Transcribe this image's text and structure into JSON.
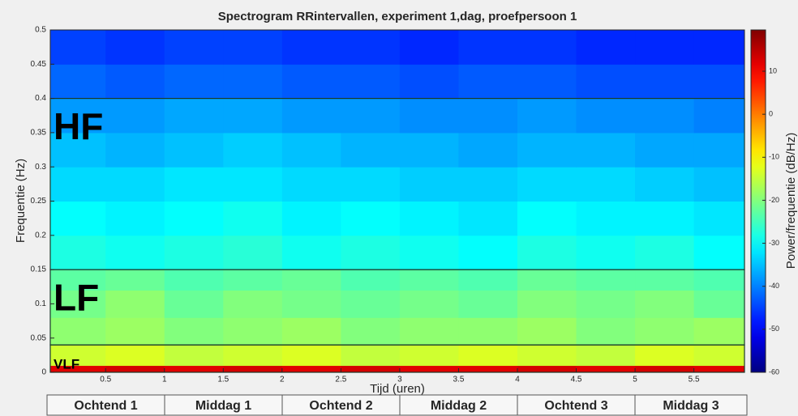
{
  "chart_data": {
    "type": "heatmap",
    "title": "Spectrogram RRintervallen, experiment 1,dag, proefpersoon 1",
    "xlabel": "Tijd (uren)",
    "ylabel": "Frequentie (Hz)",
    "colorbar_label": "Power/frequentie (dB/Hz)",
    "colormap": "jet",
    "xlim": [
      0.03,
      5.93
    ],
    "ylim": [
      0,
      0.5
    ],
    "clim": [
      -60,
      19.6
    ],
    "xticks": [
      0.5,
      1,
      1.5,
      2,
      2.5,
      3,
      3.5,
      4,
      4.5,
      5,
      5.5
    ],
    "yticks": [
      0,
      0.05,
      0.1,
      0.15,
      0.2,
      0.25,
      0.3,
      0.35,
      0.4,
      0.45,
      0.5
    ],
    "cticks": [
      -60,
      -50,
      -40,
      -30,
      -20,
      -10,
      0,
      10
    ],
    "x_edges": [
      0.03,
      0.5,
      1,
      1.5,
      2,
      2.5,
      3,
      3.5,
      4,
      4.5,
      5,
      5.5,
      5.93
    ],
    "y_edges": [
      0,
      0.01,
      0.04,
      0.08,
      0.12,
      0.15,
      0.2,
      0.25,
      0.3,
      0.35,
      0.4,
      0.45,
      0.5
    ],
    "z": [
      [
        12,
        13,
        12,
        13,
        12,
        13,
        12,
        12,
        13,
        12,
        13,
        12
      ],
      [
        -14,
        -13,
        -15,
        -14,
        -13,
        -15,
        -14,
        -13,
        -14,
        -15,
        -13,
        -14
      ],
      [
        -19,
        -18,
        -20,
        -19,
        -18,
        -20,
        -19,
        -19,
        -18,
        -20,
        -19,
        -18
      ],
      [
        -21,
        -19,
        -22,
        -20,
        -21,
        -22,
        -21,
        -22,
        -20,
        -21,
        -20,
        -22
      ],
      [
        -23,
        -22,
        -24,
        -23,
        -22,
        -24,
        -23,
        -24,
        -22,
        -23,
        -23,
        -24
      ],
      [
        -28,
        -29,
        -28,
        -27,
        -29,
        -28,
        -29,
        -30,
        -28,
        -29,
        -28,
        -30
      ],
      [
        -30,
        -31,
        -30,
        -29,
        -31,
        -30,
        -31,
        -32,
        -30,
        -31,
        -31,
        -32
      ],
      [
        -33,
        -33,
        -32,
        -32,
        -33,
        -33,
        -34,
        -34,
        -33,
        -33,
        -34,
        -35
      ],
      [
        -35,
        -36,
        -35,
        -34,
        -35,
        -36,
        -36,
        -37,
        -36,
        -36,
        -37,
        -37
      ],
      [
        -38,
        -38,
        -37,
        -37,
        -38,
        -38,
        -39,
        -39,
        -38,
        -39,
        -39,
        -40
      ],
      [
        -42,
        -43,
        -42,
        -42,
        -43,
        -43,
        -44,
        -43,
        -43,
        -44,
        -44,
        -44
      ],
      [
        -45,
        -46,
        -45,
        -45,
        -46,
        -46,
        -47,
        -46,
        -46,
        -47,
        -47,
        -47
      ]
    ],
    "bands": [
      {
        "label": "VLF",
        "range": [
          0,
          0.04
        ]
      },
      {
        "label": "LF",
        "range": [
          0.04,
          0.15
        ]
      },
      {
        "label": "HF",
        "range": [
          0.15,
          0.4
        ]
      }
    ],
    "segment_edges": [
      0,
      1,
      2,
      3,
      4,
      5,
      6
    ],
    "segments": [
      "Ochtend 1",
      "Middag 1",
      "Ochtend 2",
      "Middag 2",
      "Ochtend 3",
      "Middag 3"
    ]
  }
}
